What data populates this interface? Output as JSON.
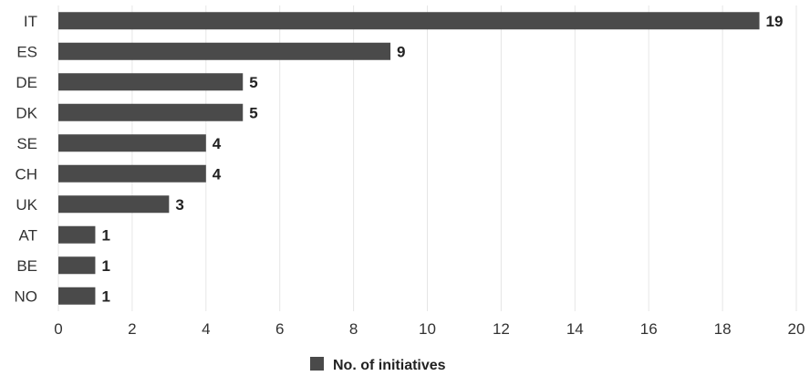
{
  "chart_data": {
    "type": "bar",
    "orientation": "horizontal",
    "categories": [
      "IT",
      "ES",
      "DE",
      "DK",
      "SE",
      "CH",
      "UK",
      "AT",
      "BE",
      "NO"
    ],
    "series": [
      {
        "name": "No. of initiatives",
        "values": [
          19,
          9,
          5,
          5,
          4,
          4,
          3,
          1,
          1,
          1
        ]
      }
    ],
    "data_labels": [
      "19",
      "9",
      "5",
      "5",
      "4",
      "4",
      "3",
      "1",
      "1",
      "1"
    ],
    "x_ticks": [
      "0",
      "2",
      "4",
      "6",
      "8",
      "10",
      "12",
      "14",
      "16",
      "18",
      "20"
    ],
    "xlim": [
      0,
      20
    ],
    "title": "",
    "xlabel": "",
    "ylabel": "",
    "grid": "vertical",
    "legend": "bottom-center",
    "colors": {
      "bar": "#4a4a4a",
      "grid": "#e6e6e6"
    }
  }
}
